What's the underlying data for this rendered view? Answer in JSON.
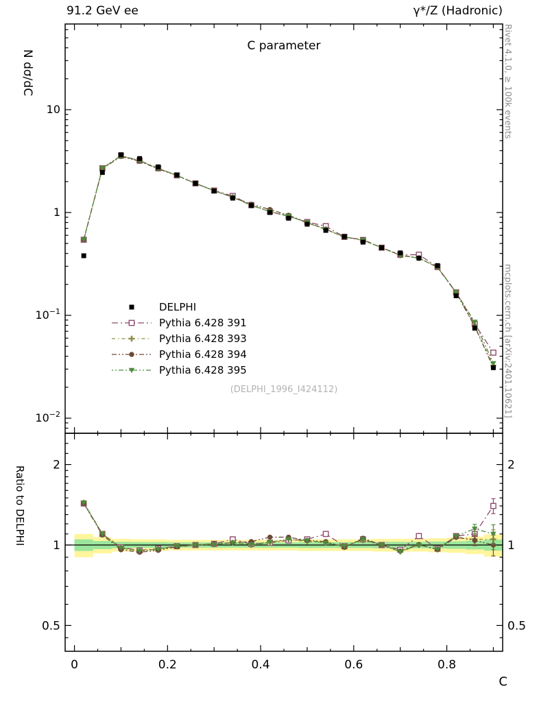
{
  "header": {
    "left": "91.2 GeV ee",
    "right": "γ*/Z (Hadronic)"
  },
  "main": {
    "title": "C parameter",
    "ylabel": "N  dσ/dC",
    "watermark": "(DELPHI_1996_I424112)"
  },
  "ratio_panel": {
    "ylabel": "Ratio to DELPHI"
  },
  "side": {
    "rivet": "Rivet 4.1.0, ≥ 100k events",
    "mcplots": "mcplots.cern.ch [arXiv:2401.10621]"
  },
  "chart_data": {
    "type": "line",
    "title": "C parameter",
    "xlabel": "C",
    "ylabel": "N dσ/dC",
    "ratio_ylabel": "Ratio to DELPHI",
    "x_range": [
      -0.02,
      0.92
    ],
    "y_scale_main": "log",
    "y_range_main": [
      0.008,
      60
    ],
    "y_scale_ratio": "log",
    "y_range_ratio": [
      0.4,
      2.6
    ],
    "x_major_ticks": [
      0,
      0.2,
      0.4,
      0.6,
      0.8
    ],
    "y_major_ticks_main": [
      0.01,
      0.1,
      1,
      10
    ],
    "y_major_ticks_ratio": [
      0.5,
      1,
      2
    ],
    "bin_halfwidth": 0.02,
    "x": [
      0.02,
      0.06,
      0.1,
      0.14,
      0.18,
      0.22,
      0.26,
      0.3,
      0.34,
      0.38,
      0.42,
      0.46,
      0.5,
      0.54,
      0.58,
      0.62,
      0.66,
      0.7,
      0.74,
      0.78,
      0.82,
      0.86,
      0.9
    ],
    "data": {
      "name": "DELPHI",
      "marker": "filled-square",
      "color": "#000000",
      "values": [
        0.38,
        2.45,
        3.65,
        3.35,
        2.78,
        2.32,
        1.92,
        1.62,
        1.38,
        1.17,
        1.0,
        0.88,
        0.77,
        0.67,
        0.585,
        0.515,
        0.455,
        0.405,
        0.36,
        0.305,
        0.155,
        0.075,
        0.031
      ]
    },
    "series": [
      {
        "name": "Pythia 6.428 391",
        "color": "#8e4a6e",
        "dash": "9 4 2 4",
        "marker": "open-square",
        "ratio": [
          1.43,
          1.1,
          0.98,
          0.955,
          0.97,
          0.99,
          1.0,
          1.01,
          1.05,
          1.01,
          1.02,
          1.04,
          1.05,
          1.1,
          0.99,
          1.05,
          1.0,
          0.96,
          1.08,
          0.97,
          1.08,
          1.1,
          1.4
        ]
      },
      {
        "name": "Pythia 6.428 393",
        "color": "#8f8f4b",
        "dash": "5 4 1.5 4",
        "marker": "open-plus",
        "ratio": [
          1.44,
          1.1,
          0.975,
          0.95,
          0.965,
          0.99,
          1.0,
          1.005,
          1.02,
          1.0,
          1.02,
          1.05,
          1.03,
          1.02,
          0.99,
          1.04,
          1.0,
          0.945,
          1.0,
          0.965,
          1.07,
          1.05,
          1.05
        ]
      },
      {
        "name": "Pythia 6.428 394",
        "color": "#6e4a38",
        "dash": "7 3 2 3 2 3",
        "marker": "filled-circle",
        "ratio": [
          1.43,
          1.09,
          0.96,
          0.94,
          0.955,
          0.985,
          1.0,
          1.01,
          1.02,
          1.03,
          1.07,
          1.07,
          1.04,
          1.03,
          0.98,
          1.06,
          1.0,
          0.95,
          1.005,
          0.96,
          1.07,
          1.04,
          1.0
        ]
      },
      {
        "name": "Pythia 6.428 395",
        "color": "#4e8c3c",
        "dash": "2 3 2 3 7 3",
        "marker": "triangle-down",
        "ratio": [
          1.44,
          1.1,
          0.975,
          0.95,
          0.965,
          0.99,
          1.0,
          1.005,
          1.02,
          1.005,
          1.025,
          1.05,
          1.04,
          1.02,
          0.99,
          1.05,
          1.0,
          0.945,
          1.0,
          0.965,
          1.08,
          1.15,
          1.1
        ]
      }
    ],
    "ratio_err": [
      0.02,
      0.012,
      0.008,
      0.008,
      0.008,
      0.008,
      0.008,
      0.008,
      0.008,
      0.008,
      0.01,
      0.01,
      0.01,
      0.012,
      0.012,
      0.014,
      0.015,
      0.016,
      0.018,
      0.02,
      0.025,
      0.045,
      0.09
    ],
    "band": {
      "yellow_halfwidth": [
        0.1,
        0.07,
        0.055,
        0.05,
        0.05,
        0.045,
        0.045,
        0.045,
        0.045,
        0.045,
        0.045,
        0.045,
        0.05,
        0.05,
        0.05,
        0.05,
        0.055,
        0.055,
        0.055,
        0.06,
        0.065,
        0.075,
        0.095
      ],
      "green_fraction": 0.5,
      "yellow_color": "#fff59d",
      "green_color": "#9ce69c"
    },
    "legend_position": "inside-left"
  }
}
